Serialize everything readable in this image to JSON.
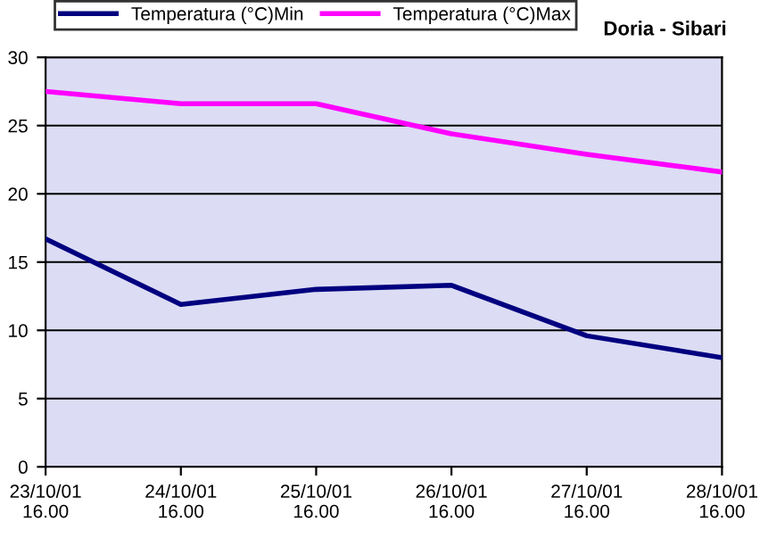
{
  "chart_data": {
    "type": "line",
    "title": "Doria - Sibari",
    "categories": [
      "23/10/01\n16.00",
      "24/10/01\n16.00",
      "25/10/01\n16.00",
      "26/10/01\n16.00",
      "27/10/01\n16.00",
      "28/10/01\n16.00"
    ],
    "series": [
      {
        "name": "Temperatura (°C)Min",
        "color": "#000080",
        "values": [
          16.7,
          11.9,
          13.0,
          13.3,
          9.6,
          8.0
        ]
      },
      {
        "name": "Temperatura (°C)Max",
        "color": "#ff00ff",
        "values": [
          27.5,
          26.6,
          26.6,
          24.4,
          22.9,
          21.6
        ]
      }
    ],
    "ylim": [
      0,
      30
    ],
    "yticks": [
      0,
      5,
      10,
      15,
      20,
      25,
      30
    ],
    "grid": "y",
    "legend": "top",
    "marker": "none",
    "line_style": "solid"
  }
}
